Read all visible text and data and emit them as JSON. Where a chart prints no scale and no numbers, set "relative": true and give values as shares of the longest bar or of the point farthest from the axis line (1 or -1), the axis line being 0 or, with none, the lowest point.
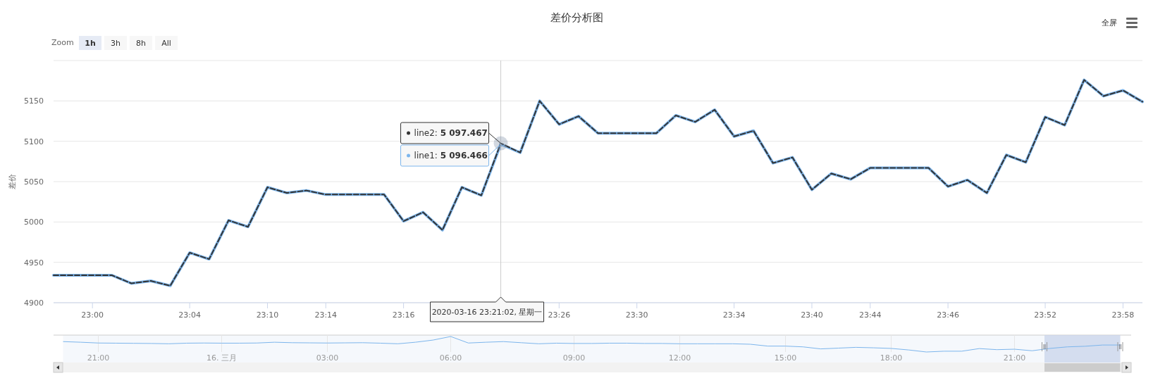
{
  "chart_data": [
    {
      "type": "line",
      "title": "差价分析图",
      "ylabel": "差价",
      "categories": [
        null,
        null,
        "23:00",
        null,
        null,
        null,
        null,
        "23:04",
        null,
        null,
        null,
        "23:10",
        null,
        null,
        "23:14",
        null,
        null,
        null,
        "23:16",
        null,
        null,
        null,
        null,
        null,
        null,
        null,
        "23:26",
        null,
        null,
        null,
        "23:30",
        null,
        null,
        null,
        null,
        "23:34",
        null,
        null,
        null,
        "23:40",
        null,
        null,
        "23:44",
        null,
        null,
        null,
        "23:46",
        null,
        null,
        null,
        null,
        "23:52",
        null,
        null,
        null,
        "23:58",
        null
      ],
      "ylim": [
        4900,
        5200
      ],
      "yticks": [
        4900,
        4950,
        5000,
        5050,
        5100,
        5150,
        {
          "value": 5200,
          "label": null
        }
      ],
      "grid": "y",
      "series": [
        {
          "name": "line1",
          "color": "#7cb5ec",
          "values": [
            4934,
            4934,
            4934,
            4934,
            4924,
            4927,
            4921,
            4962,
            4954,
            5002,
            4994,
            5043,
            5036,
            5039,
            5034,
            5034,
            5034,
            5034,
            5001,
            5012,
            4990,
            5043,
            5033,
            5096.466,
            5086,
            5150,
            5121,
            5131,
            5110,
            5110,
            5110,
            5110,
            5132,
            5124,
            5139,
            5106,
            5113,
            5073,
            5080,
            5040,
            5060,
            5053,
            5067,
            5067,
            5067,
            5067,
            5044,
            5052,
            5036,
            5083,
            5074,
            5130,
            5120,
            5176,
            5156,
            5163,
            5149
          ]
        },
        {
          "name": "line2",
          "color": "#333333",
          "line_style": "dashed",
          "values": [
            4934,
            4934,
            4934,
            4934,
            4924,
            4927,
            4921,
            4962,
            4954,
            5002,
            4994,
            5043,
            5036,
            5039,
            5034,
            5034,
            5034,
            5034,
            5001,
            5012,
            4990,
            5043,
            5033,
            5097.467,
            5086,
            5150,
            5121,
            5131,
            5110,
            5110,
            5110,
            5110,
            5132,
            5124,
            5139,
            5106,
            5113,
            5073,
            5080,
            5040,
            5060,
            5053,
            5067,
            5067,
            5067,
            5067,
            5044,
            5052,
            5036,
            5083,
            5074,
            5130,
            5120,
            5176,
            5156,
            5163,
            5149
          ]
        }
      ],
      "annotations": [
        "Zoom",
        "1h",
        "3h",
        "8h",
        "All",
        "全屏",
        ": 5 097.467",
        ": 5 096.466",
        "2020-03-16 23:21:02, 星期一"
      ]
    },
    {
      "type": "line",
      "relative": true,
      "color": "#7cb5ec",
      "grid": "x",
      "categories": [
        null,
        null,
        "21:00",
        null,
        null,
        null,
        null,
        null,
        null,
        "16. 三月",
        null,
        null,
        null,
        null,
        null,
        "03:00",
        null,
        null,
        null,
        null,
        null,
        null,
        "06:00",
        null,
        null,
        null,
        null,
        null,
        null,
        "09:00",
        null,
        null,
        null,
        null,
        null,
        "12:00",
        null,
        null,
        null,
        null,
        null,
        "15:00",
        null,
        null,
        null,
        null,
        null,
        "18:00",
        null,
        null,
        null,
        null,
        null,
        null,
        "21:00",
        null,
        null,
        null,
        null,
        null,
        null
      ],
      "values": [
        0.67,
        0.63,
        0.58,
        0.57,
        0.56,
        0.55,
        0.53,
        0.57,
        0.58,
        0.57,
        0.57,
        0.58,
        0.63,
        0.6,
        0.59,
        0.58,
        0.59,
        0.6,
        0.57,
        0.53,
        0.63,
        0.77,
        1,
        0.58,
        0.63,
        0.67,
        0.6,
        0.53,
        0.57,
        0.55,
        0.55,
        0.57,
        0.57,
        0.55,
        0.55,
        0.53,
        0.53,
        0.53,
        0.53,
        0.5,
        0.38,
        0.38,
        0.33,
        0.2,
        0.25,
        0.3,
        0.27,
        0.23,
        0.13,
        0,
        0.05,
        0.05,
        0.22,
        0.15,
        0.18,
        0.08,
        0.23,
        0.33,
        0.37,
        0.45,
        0.45
      ]
    }
  ]
}
